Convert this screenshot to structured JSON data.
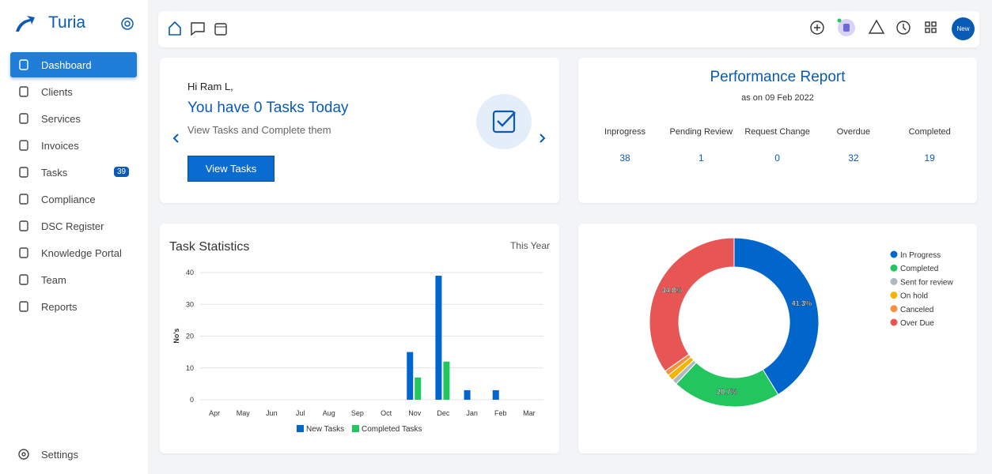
{
  "sidebar": {
    "brand": "Turia",
    "nav": [
      {
        "label": "Dashboard"
      },
      {
        "label": "Clients"
      },
      {
        "label": "Services"
      },
      {
        "label": "Invoices"
      },
      {
        "label": "Tasks",
        "badge": 39
      },
      {
        "label": "Compliance"
      },
      {
        "label": "DSC Register"
      },
      {
        "label": "Knowledge Portal"
      },
      {
        "label": "Team"
      },
      {
        "label": "Reports"
      }
    ],
    "settings": "Settings"
  },
  "header": {
    "avatar": "New"
  },
  "tasks_card": {
    "greeting": "Hi Ram L,",
    "headline": "You have 0 Tasks Today",
    "subtext": "View Tasks and Complete them",
    "button": "View Tasks"
  },
  "performance": {
    "title": "Performance Report",
    "subtitle": "as on 09 Feb 2022",
    "columns": [
      {
        "label": "Inprogress",
        "value": 38
      },
      {
        "label": "Pending Review",
        "value": 1
      },
      {
        "label": "Request Change",
        "value": 0
      },
      {
        "label": "Overdue",
        "value": 32
      },
      {
        "label": "Completed",
        "value": 19
      }
    ]
  },
  "chart_data": [
    {
      "type": "bar",
      "title": "Task Statistics",
      "period": "This Year",
      "y_label": "No's",
      "categories": [
        "Apr",
        "May",
        "Jun",
        "Jul",
        "Aug",
        "Sep",
        "Oct",
        "Nov",
        "Dec",
        "Jan",
        "Feb",
        "Mar"
      ],
      "series": [
        {
          "name": "New Tasks",
          "color": "#0066cc",
          "values": [
            0,
            0,
            0,
            0,
            0,
            0,
            0,
            15,
            39,
            3,
            3,
            0
          ]
        },
        {
          "name": "Completed Tasks",
          "color": "#22c55e",
          "values": [
            0,
            0,
            0,
            0,
            0,
            0,
            0,
            7,
            12,
            0,
            0,
            0
          ]
        }
      ],
      "ylim": [
        0,
        40
      ],
      "yticks": [
        0,
        10,
        20,
        30,
        40
      ],
      "grid": true
    },
    {
      "type": "pie",
      "categories": [
        "In Progress",
        "Completed",
        "Sent for review",
        "On hold",
        "Canceled",
        "Over Due"
      ],
      "values": [
        41.3,
        20.7,
        1.0,
        1.2,
        1.0,
        34.8
      ],
      "value_labels": [
        "41.3%",
        "20.7%",
        null,
        null,
        null,
        "34.8%"
      ],
      "colors": [
        "#0066cc",
        "#22c55e",
        "#b0b8c1",
        "#f5b400",
        "#f59242",
        "#e85555"
      ]
    }
  ]
}
